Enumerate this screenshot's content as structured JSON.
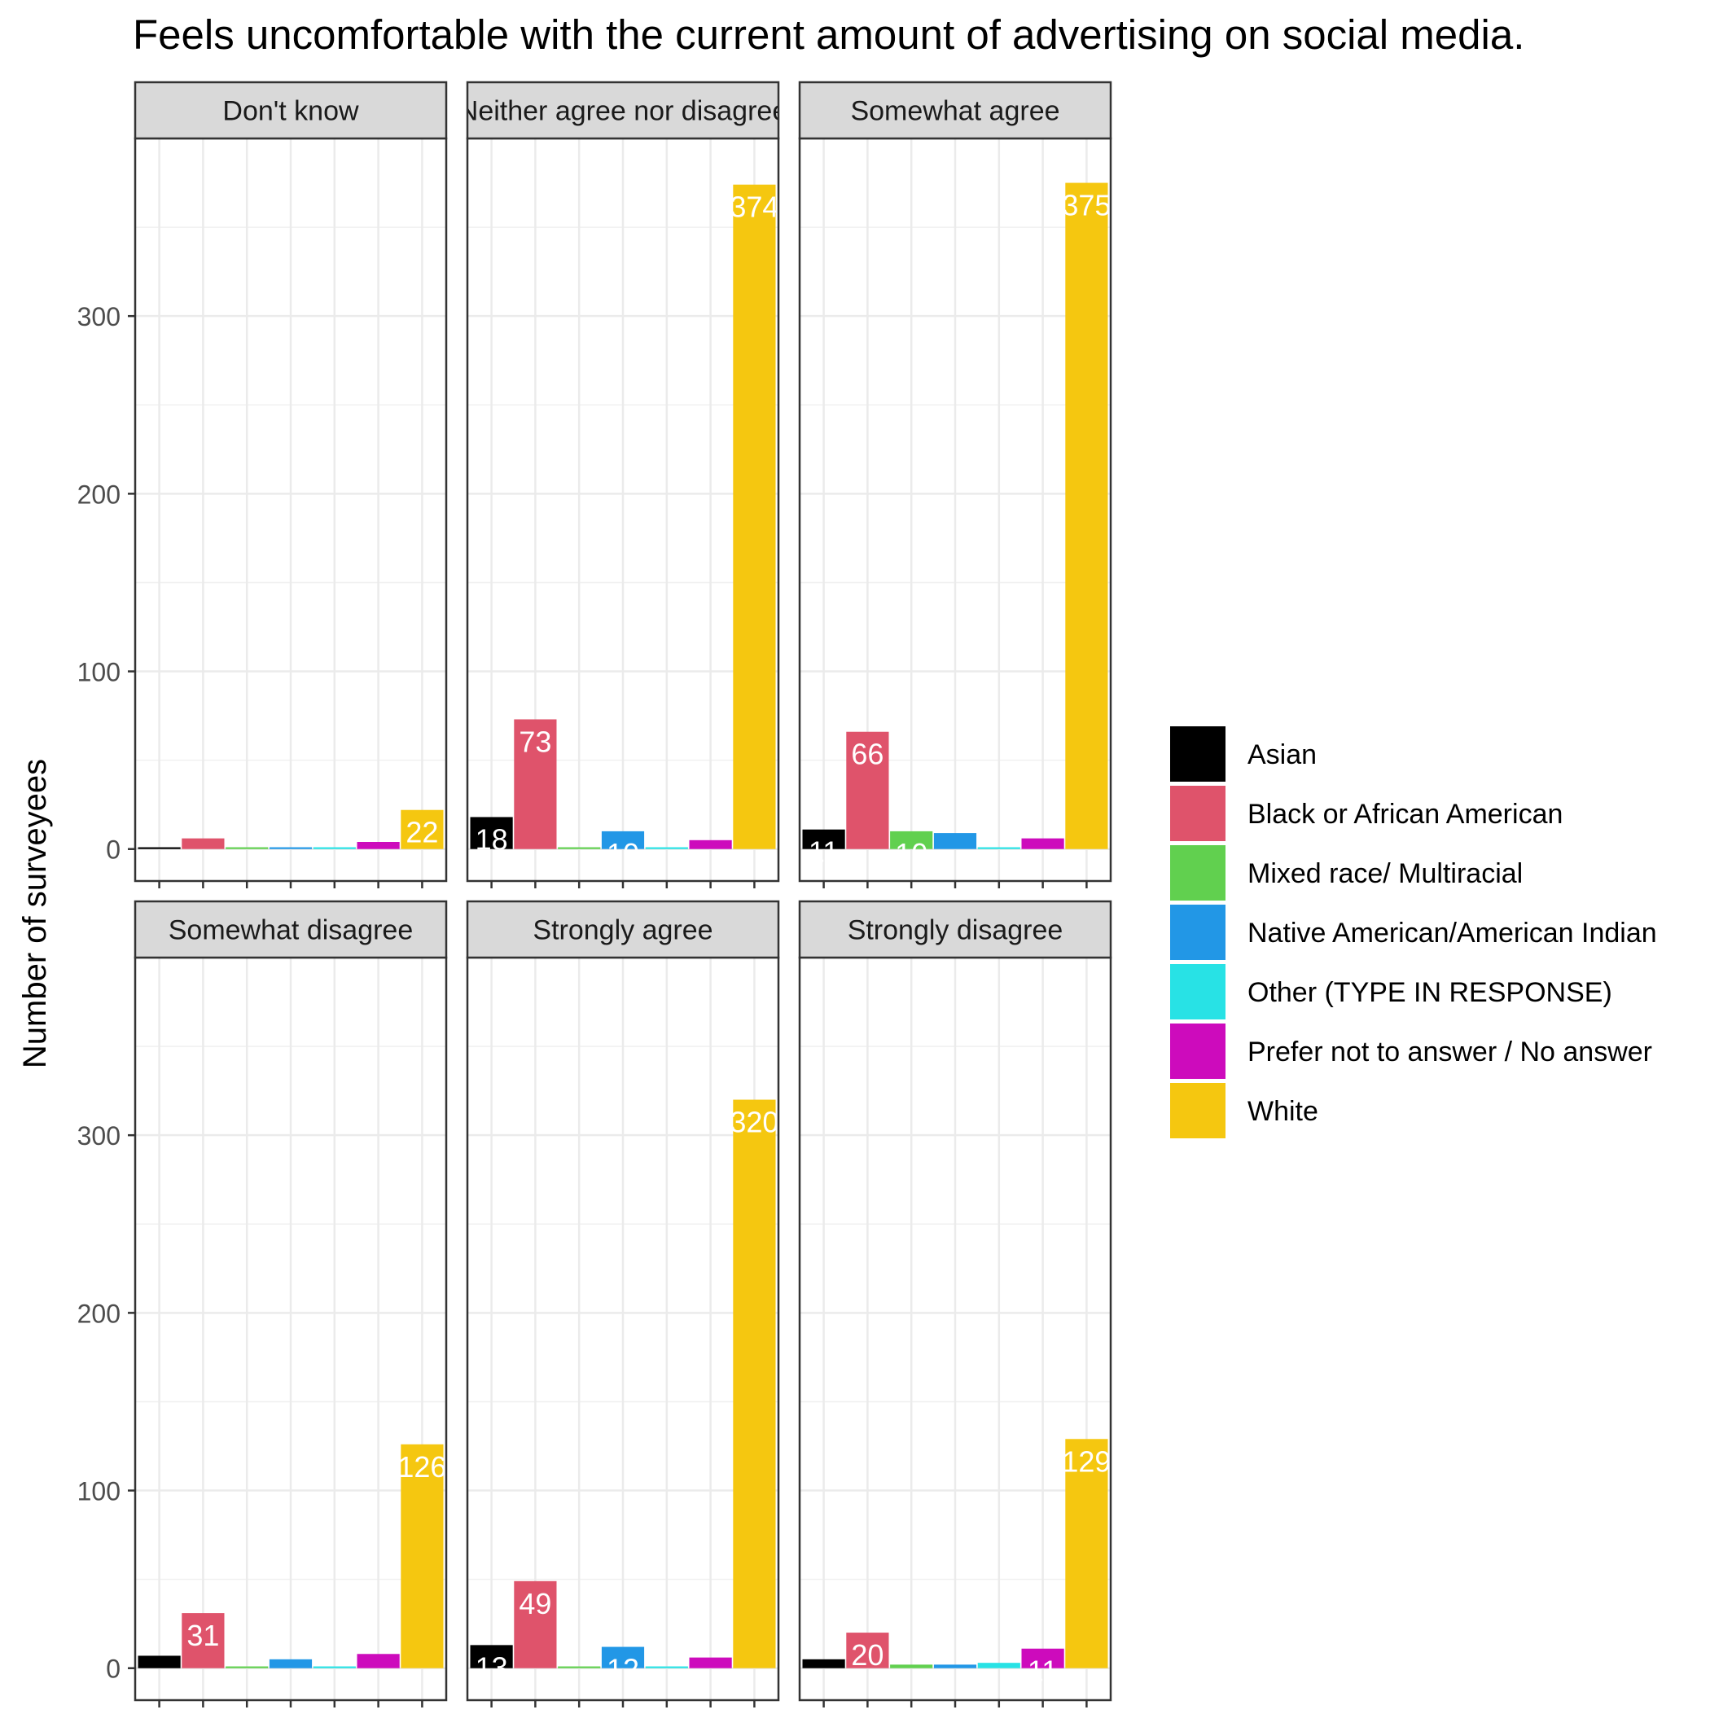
{
  "chart_data": {
    "type": "bar",
    "title": "Feels uncomfortable with the current amount of advertising on social media.",
    "xlabel": "",
    "ylabel": "Number of surveyees",
    "ylim": [
      0,
      400
    ],
    "yticks": [
      0,
      100,
      200,
      300
    ],
    "grid": true,
    "legend_position": "right",
    "categories": [
      "Asian",
      "Black or African American",
      "Mixed race/ Multiracial",
      "Native American/American Indian",
      "Other (TYPE IN RESPONSE)",
      "Prefer not to answer / No answer",
      "White"
    ],
    "colors": [
      "#000000",
      "#DF536B",
      "#61D04F",
      "#2297E6",
      "#28E2E5",
      "#CD0BBC",
      "#F5C710"
    ],
    "label_colors": [
      "#FFFFFF",
      "#FFFFFF",
      "#FFFFFF",
      "#FFFFFF",
      "#FFFFFF",
      "#FFFFFF",
      "#FFFFFF"
    ],
    "panels": [
      {
        "name": "Don't know",
        "values": [
          1,
          6,
          1,
          1,
          1,
          4,
          22
        ]
      },
      {
        "name": "Neither agree nor disagree",
        "values": [
          18,
          73,
          1,
          10,
          1,
          5,
          374
        ]
      },
      {
        "name": "Somewhat agree",
        "values": [
          11,
          66,
          10,
          9,
          1,
          6,
          375
        ]
      },
      {
        "name": "Somewhat disagree",
        "values": [
          7,
          31,
          1,
          5,
          1,
          8,
          126
        ]
      },
      {
        "name": "Strongly agree",
        "values": [
          13,
          49,
          1,
          12,
          1,
          6,
          320
        ]
      },
      {
        "name": "Strongly disagree",
        "values": [
          5,
          20,
          2,
          2,
          3,
          11,
          129
        ]
      }
    ]
  }
}
